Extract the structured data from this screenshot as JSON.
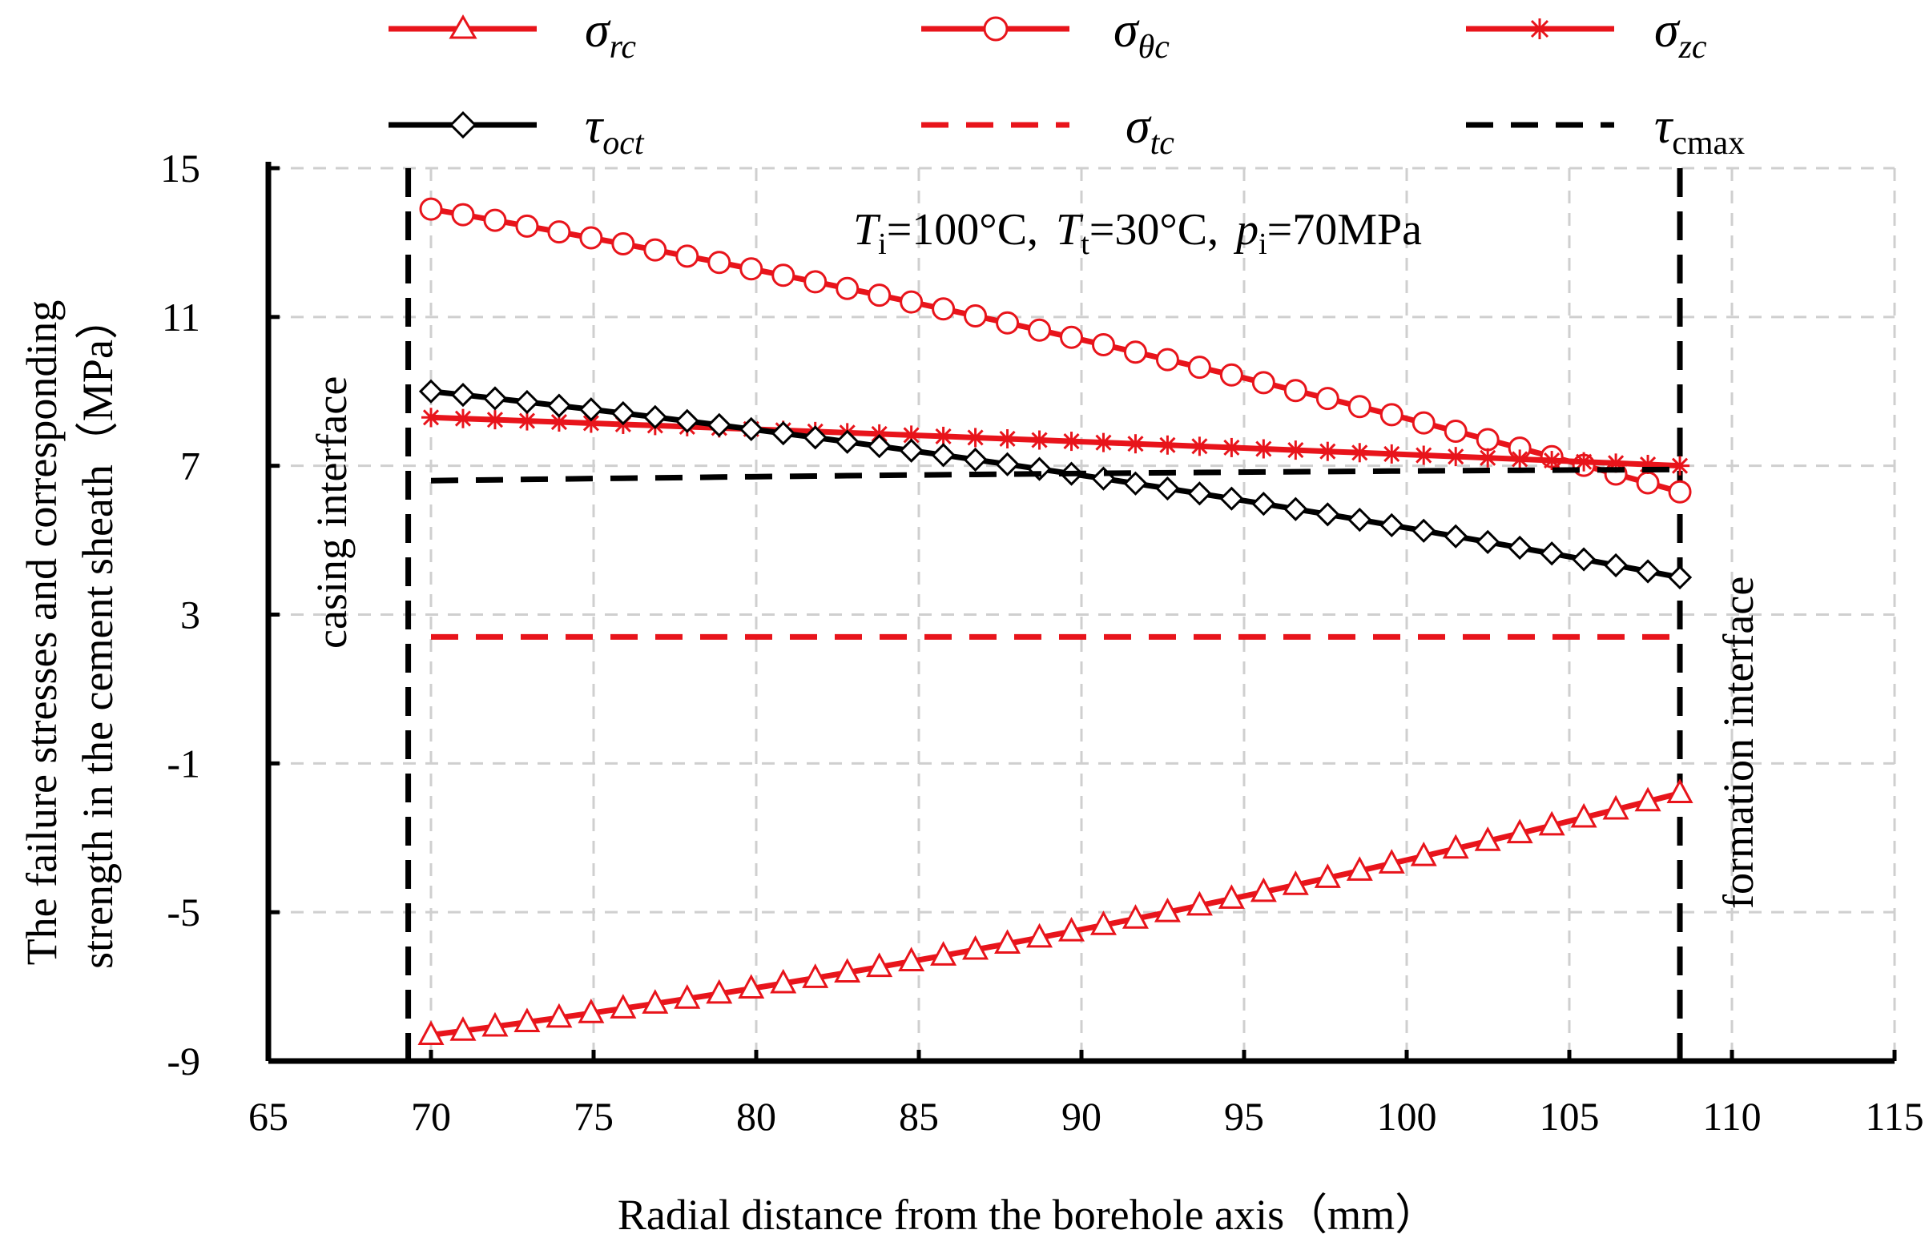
{
  "chart_data": {
    "type": "line",
    "xlabel": "Radial distance from  the borehole axis（mm）",
    "ylabel_line1": "The failure stresses and corresponding",
    "ylabel_line2": "strength  in the cement sheath（MPa）",
    "xlim": [
      65,
      115
    ],
    "ylim": [
      -9,
      15
    ],
    "xticks": [
      "65",
      "70",
      "75",
      "80",
      "85",
      "90",
      "95",
      "100",
      "105",
      "110",
      "115"
    ],
    "yticks": [
      "-9",
      "-5",
      "-1",
      "3",
      "7",
      "11",
      "15"
    ],
    "grid": true,
    "annotation": {
      "T_i_sym": "T",
      "T_i_sub": "i",
      "T_i_val": "=100°C,",
      "T_t_sym": "T",
      "T_t_sub": "t",
      "T_t_val": "=30°C,",
      "p_i_sym": "p",
      "p_i_sub": "i",
      "p_i_val": "=70MPa"
    },
    "interfaces": [
      {
        "label": "casing  interface",
        "x": 69.3
      },
      {
        "label": "formation  interface",
        "x": 108.4
      }
    ],
    "x_start": 70,
    "x_end": 108.4,
    "n_points": 40,
    "series": [
      {
        "id": "sigma_rc",
        "sym": "σ",
        "sub": "rc",
        "color": "#e8141b",
        "dash": "solid",
        "marker": "triangle",
        "y_start": -8.3,
        "y_end": -1.8,
        "curve": -2.2
      },
      {
        "id": "sigma_theta_c",
        "sym": "σ",
        "sub": "θc",
        "color": "#e8141b",
        "dash": "solid",
        "marker": "circle",
        "y_start": 13.9,
        "y_end": 6.3,
        "curve": 1.8
      },
      {
        "id": "sigma_zc",
        "sym": "σ",
        "sub": "zc",
        "color": "#e8141b",
        "dash": "solid",
        "marker": "star",
        "y_start": 8.3,
        "y_end": 7.0,
        "curve": 0.1
      },
      {
        "id": "tau_oct",
        "sym": "τ",
        "sub": "oct",
        "color": "#000000",
        "dash": "solid",
        "marker": "diamond",
        "y_start": 9.0,
        "y_end": 4.0,
        "curve": 1.4
      },
      {
        "id": "sigma_tc",
        "sym": "σ",
        "sub": "tc",
        "color": "#e8141b",
        "dash": "dashed",
        "marker": "none",
        "y_start": 2.4,
        "y_end": 2.4,
        "curve": 0
      },
      {
        "id": "tau_cmax",
        "sym": "τ",
        "sub": "cmax",
        "color": "#000000",
        "dash": "dashed",
        "marker": "none",
        "y_start": 6.6,
        "y_end": 6.9,
        "curve": 0.15
      }
    ]
  }
}
